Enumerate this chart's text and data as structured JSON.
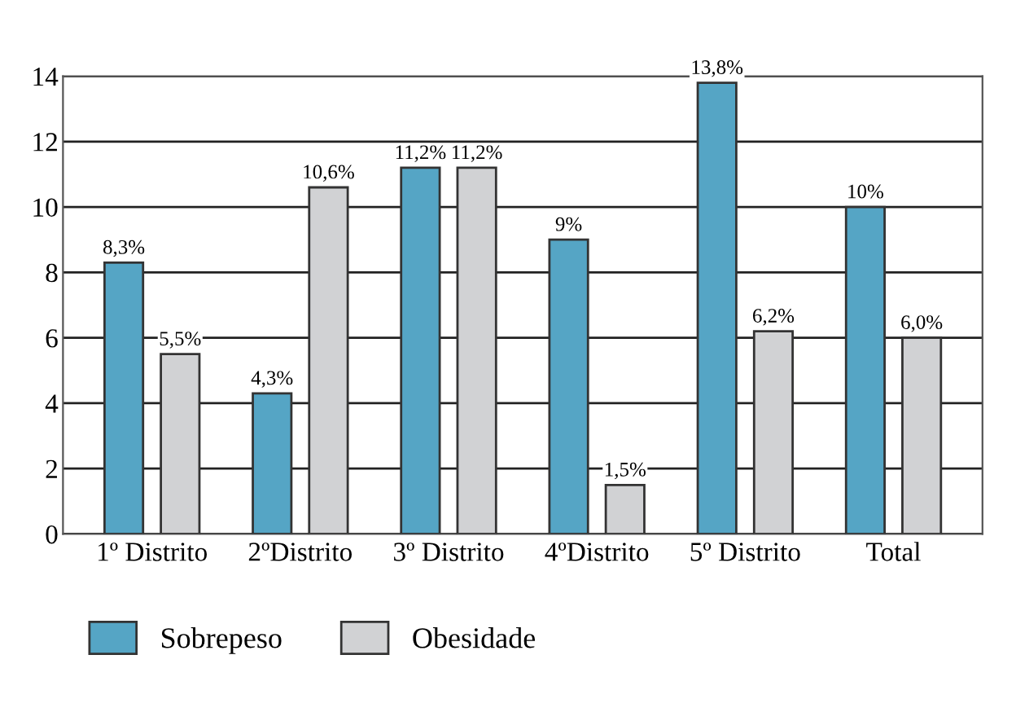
{
  "chart_data": {
    "type": "bar",
    "categories": [
      "1º Distrito",
      "2ºDistrito",
      "3º Distrito",
      "4ºDistrito",
      "5º Distrito",
      "Total"
    ],
    "series": [
      {
        "name": "Sobrepeso",
        "color": "#55a5c5",
        "values": [
          8.3,
          4.3,
          11.2,
          9,
          13.8,
          10
        ],
        "value_labels": [
          "8,3%",
          "4,3%",
          "11,2%",
          "9%",
          "13,8%",
          "10%"
        ]
      },
      {
        "name": "Obesidade",
        "color": "#d1d2d4",
        "values": [
          5.5,
          10.6,
          11.2,
          1.5,
          6.2,
          6.0
        ],
        "value_labels": [
          "5,5%",
          "10,6%",
          "11,2%",
          "1,5%",
          "6,2%",
          "6,0%"
        ]
      }
    ],
    "ylim": [
      0,
      14
    ],
    "yticks": [
      0,
      2,
      4,
      6,
      8,
      10,
      12,
      14
    ],
    "grid": "y",
    "legend": "bottom left"
  }
}
